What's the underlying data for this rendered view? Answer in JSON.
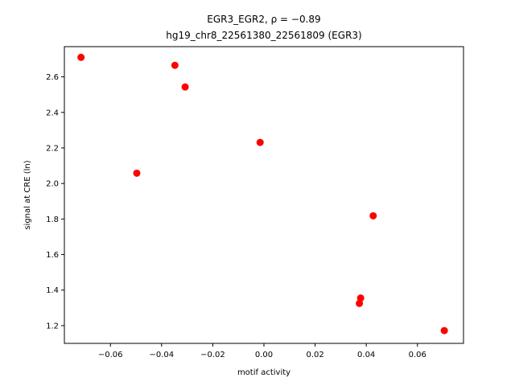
{
  "chart_data": {
    "type": "scatter",
    "title_line1": "EGR3_EGR2, ρ = −0.89",
    "title_line2": "hg19_chr8_22561380_22561809 (EGR3)",
    "xlabel": "motif activity",
    "ylabel": "signal at CRE (ln)",
    "xlim": [
      -0.078,
      0.078
    ],
    "ylim": [
      1.1,
      2.77
    ],
    "xticks": [
      -0.06,
      -0.04,
      -0.02,
      0.0,
      0.02,
      0.04,
      0.06
    ],
    "xtick_labels": [
      "−0.06",
      "−0.04",
      "−0.02",
      "0.00",
      "0.02",
      "0.04",
      "0.06"
    ],
    "yticks": [
      1.2,
      1.4,
      1.6,
      1.8,
      2.0,
      2.2,
      2.4,
      2.6
    ],
    "ytick_labels": [
      "1.2",
      "1.4",
      "1.6",
      "1.8",
      "2.0",
      "2.2",
      "2.4",
      "2.6"
    ],
    "marker_color": "#ff0000",
    "grid": false,
    "points": [
      {
        "x": -0.0715,
        "y": 2.71
      },
      {
        "x": -0.0348,
        "y": 2.665
      },
      {
        "x": -0.0308,
        "y": 2.543
      },
      {
        "x": -0.0497,
        "y": 2.058
      },
      {
        "x": -0.0015,
        "y": 2.231
      },
      {
        "x": 0.0427,
        "y": 1.818
      },
      {
        "x": 0.0378,
        "y": 1.355
      },
      {
        "x": 0.0373,
        "y": 1.325
      },
      {
        "x": 0.0705,
        "y": 1.172
      }
    ]
  }
}
